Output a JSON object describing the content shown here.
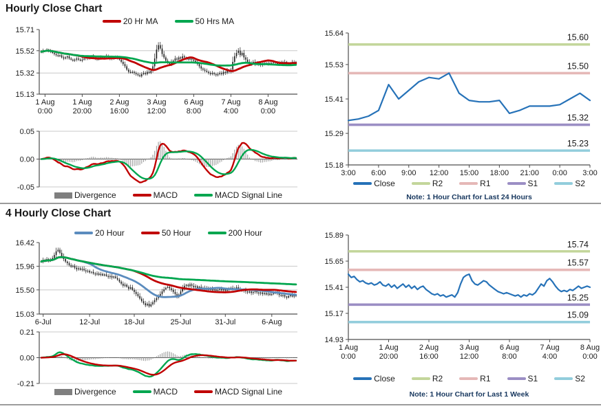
{
  "sections": {
    "hourly": {
      "title": "Hourly Close Chart"
    },
    "four_hourly": {
      "title": "4 Hourly Close Chart"
    }
  },
  "notes": {
    "day": "Note: 1 Hour Chart for Last 24 Hours",
    "week": "Note: 1 Hour Chart for Last 1 Week"
  },
  "colors": {
    "red": "#c00000",
    "green": "#00a64f",
    "blue_ma": "#5b8cbe",
    "close": "#2672b8",
    "candle": "#1b1b1b",
    "divergence_bar": "#9c9c9c",
    "divergence_legend": "#7f7f7f",
    "r2": "#c3d69b",
    "r1": "#e5b8b7",
    "s1": "#9b8ec4",
    "s2": "#92cddc",
    "grid": "#c8c8c8",
    "axis": "#4d4d4d",
    "note_text": "#17375e"
  },
  "legends": {
    "hourly_ma": [
      {
        "label": "20 Hr MA",
        "color": "#c00000"
      },
      {
        "label": "50 Hrs MA",
        "color": "#00a64f"
      }
    ],
    "hourly_macd": [
      {
        "label": "Divergence",
        "color": "#7f7f7f",
        "type": "bar"
      },
      {
        "label": "MACD",
        "color": "#c00000"
      },
      {
        "label": "MACD Signal Line",
        "color": "#00a64f"
      }
    ],
    "fourh_ma": [
      {
        "label": "20 Hour",
        "color": "#5b8cbe"
      },
      {
        "label": "50 Hour",
        "color": "#c00000"
      },
      {
        "label": "200 Hour",
        "color": "#00a64f"
      }
    ],
    "fourh_macd": [
      {
        "label": "Divergence",
        "color": "#7f7f7f",
        "type": "bar"
      },
      {
        "label": "MACD",
        "color": "#00a64f"
      },
      {
        "label": "MACD Signal Line",
        "color": "#c00000"
      }
    ],
    "day_pivot": [
      {
        "label": "Close",
        "color": "#2672b8"
      },
      {
        "label": "R2",
        "color": "#c3d69b"
      },
      {
        "label": "R1",
        "color": "#e5b8b7"
      },
      {
        "label": "S1",
        "color": "#9b8ec4"
      },
      {
        "label": "S2",
        "color": "#92cddc"
      }
    ],
    "week_pivot": [
      {
        "label": "Close",
        "color": "#2672b8"
      },
      {
        "label": "R2",
        "color": "#c3d69b"
      },
      {
        "label": "R1",
        "color": "#e5b8b7"
      },
      {
        "label": "S1",
        "color": "#9b8ec4"
      },
      {
        "label": "S2",
        "color": "#92cddc"
      }
    ]
  },
  "chart_data": {
    "hourly_close": {
      "type": "candlestick",
      "title": "Hourly Close Chart",
      "ylim": [
        15.13,
        15.71
      ],
      "y_ticks": [
        15.71,
        15.52,
        15.32,
        15.13
      ],
      "y_tick_labels": [
        "15.71",
        "15.52",
        "15.32",
        "15.13"
      ],
      "x_tick_indices": [
        2,
        22,
        42,
        62,
        82,
        102,
        122
      ],
      "x_tick_labels": [
        [
          "1 Aug",
          "0:00"
        ],
        [
          "1 Aug",
          "20:00"
        ],
        [
          "2 Aug",
          "16:00"
        ],
        [
          "3 Aug",
          "12:00"
        ],
        [
          "6 Aug",
          "8:00"
        ],
        [
          "7 Aug",
          "4:00"
        ],
        [
          "8 Aug",
          "0:00"
        ]
      ],
      "series": [
        {
          "name": "20 Hr MA",
          "derived": "SMA20 of closes"
        },
        {
          "name": "50 Hrs MA",
          "derived": "SMA50 of closes"
        }
      ],
      "closes": [
        15.51,
        15.52,
        15.52,
        15.53,
        15.52,
        15.51,
        15.5,
        15.49,
        15.48,
        15.47,
        15.48,
        15.46,
        15.45,
        15.46,
        15.47,
        15.45,
        15.44,
        15.43,
        15.44,
        15.45,
        15.44,
        15.43,
        15.44,
        15.45,
        15.46,
        15.45,
        15.46,
        15.47,
        15.46,
        15.45,
        15.44,
        15.45,
        15.46,
        15.45,
        15.46,
        15.47,
        15.46,
        15.45,
        15.46,
        15.45,
        15.46,
        15.45,
        15.44,
        15.42,
        15.4,
        15.38,
        15.35,
        15.33,
        15.32,
        15.33,
        15.32,
        15.31,
        15.3,
        15.29,
        15.31,
        15.32,
        15.31,
        15.33,
        15.32,
        15.34,
        15.38,
        15.45,
        15.53,
        15.57,
        15.54,
        15.49,
        15.46,
        15.43,
        15.41,
        15.4,
        15.42,
        15.43,
        15.45,
        15.44,
        15.46,
        15.45,
        15.47,
        15.46,
        15.45,
        15.44,
        15.45,
        15.44,
        15.43,
        15.42,
        15.4,
        15.38,
        15.36,
        15.35,
        15.34,
        15.33,
        15.32,
        15.31,
        15.32,
        15.31,
        15.3,
        15.31,
        15.32,
        15.31,
        15.33,
        15.32,
        15.34,
        15.33,
        15.35,
        15.42,
        15.47,
        15.5,
        15.52,
        15.48,
        15.5,
        15.46,
        15.44,
        15.42,
        15.4,
        15.41,
        15.42,
        15.4,
        15.41,
        15.4,
        15.39,
        15.4,
        15.41,
        15.4,
        15.41,
        15.4,
        15.41,
        15.42,
        15.41,
        15.4,
        15.41,
        15.42,
        15.41,
        15.42,
        15.41,
        15.4,
        15.41,
        15.42,
        15.42,
        15.41
      ]
    },
    "hourly_macd": {
      "type": "macd",
      "ylim": [
        -0.05,
        0.05
      ],
      "y_ticks": [
        0.05,
        0.0,
        -0.05
      ],
      "y_tick_labels": [
        "0.05",
        "0.00",
        "-0.05"
      ],
      "derived": "MACD(12,26,9) of hourly closes; Divergence = MACD - Signal",
      "macd_color": "#c00000",
      "signal_color": "#00a64f"
    },
    "day_close": {
      "type": "line",
      "note": "Note: 1 Hour Chart for Last 24 Hours",
      "ylim": [
        15.18,
        15.64
      ],
      "y_ticks": [
        15.64,
        15.53,
        15.41,
        15.29,
        15.18
      ],
      "y_tick_labels": [
        "15.64",
        "15.53",
        "15.41",
        "15.29",
        "15.18"
      ],
      "x_tick_indices": [
        0,
        3,
        6,
        9,
        12,
        15,
        18,
        21,
        24
      ],
      "x_tick_labels": [
        "3:00",
        "6:00",
        "9:00",
        "12:00",
        "15:00",
        "18:00",
        "21:00",
        "0:00",
        "3:00"
      ],
      "levels": [
        {
          "name": "R2",
          "value": 15.6,
          "label": "15.60",
          "color": "#c3d69b"
        },
        {
          "name": "R1",
          "value": 15.5,
          "label": "15.50",
          "color": "#e5b8b7"
        },
        {
          "name": "S1",
          "value": 15.32,
          "label": "15.32",
          "color": "#9b8ec4"
        },
        {
          "name": "S2",
          "value": 15.23,
          "label": "15.23",
          "color": "#92cddc"
        }
      ],
      "closes": [
        15.335,
        15.34,
        15.35,
        15.37,
        15.46,
        15.41,
        15.44,
        15.47,
        15.485,
        15.48,
        15.5,
        15.43,
        15.405,
        15.4,
        15.4,
        15.405,
        15.36,
        15.37,
        15.385,
        15.385,
        15.385,
        15.39,
        15.41,
        15.43,
        15.405
      ]
    },
    "fourh_close": {
      "type": "candlestick",
      "title": "4 Hourly Close Chart",
      "ylim": [
        15.03,
        16.42
      ],
      "y_ticks": [
        16.42,
        15.96,
        15.5,
        15.03
      ],
      "y_tick_labels": [
        "16.42",
        "15.96",
        "15.50",
        "15.03"
      ],
      "x_tick_indices": [
        1,
        26,
        50,
        75,
        99,
        124
      ],
      "x_tick_labels": [
        [
          "6-Jul"
        ],
        [
          "12-Jul"
        ],
        [
          "18-Jul"
        ],
        [
          "25-Jul"
        ],
        [
          "31-Jul"
        ],
        [
          "6-Aug"
        ]
      ],
      "series": [
        {
          "name": "20 Hour",
          "derived": "SMA20 of closes"
        },
        {
          "name": "50 Hour",
          "derived": "SMA50 of closes"
        },
        {
          "name": "200 Hour",
          "derived": "SMA200 of closes"
        }
      ],
      "closes": [
        16.05,
        16.08,
        16.06,
        16.1,
        16.07,
        16.09,
        16.12,
        16.18,
        16.25,
        16.28,
        16.22,
        16.15,
        16.1,
        16.05,
        16.02,
        15.98,
        15.95,
        15.97,
        15.93,
        15.9,
        15.92,
        15.89,
        15.91,
        15.88,
        15.86,
        15.87,
        15.84,
        15.85,
        15.82,
        15.8,
        15.82,
        15.79,
        15.81,
        15.78,
        15.8,
        15.77,
        15.75,
        15.77,
        15.74,
        15.76,
        15.73,
        15.7,
        15.66,
        15.62,
        15.58,
        15.6,
        15.56,
        15.52,
        15.55,
        15.5,
        15.46,
        15.42,
        15.38,
        15.33,
        15.28,
        15.24,
        15.2,
        15.23,
        15.18,
        15.22,
        15.26,
        15.3,
        15.34,
        15.38,
        15.42,
        15.47,
        15.51,
        15.54,
        15.56,
        15.53,
        15.5,
        15.46,
        15.42,
        15.38,
        15.41,
        15.47,
        15.53,
        15.58,
        15.6,
        15.57,
        15.61,
        15.58,
        15.55,
        15.57,
        15.54,
        15.56,
        15.52,
        15.54,
        15.51,
        15.53,
        15.5,
        15.52,
        15.49,
        15.51,
        15.48,
        15.5,
        15.52,
        15.49,
        15.51,
        15.48,
        15.5,
        15.52,
        15.54,
        15.51,
        15.53,
        15.55,
        15.52,
        15.5,
        15.48,
        15.5,
        15.47,
        15.45,
        15.47,
        15.44,
        15.46,
        15.48,
        15.45,
        15.43,
        15.45,
        15.42,
        15.44,
        15.41,
        15.43,
        15.4,
        15.42,
        15.44,
        15.46,
        15.43,
        15.4,
        15.38,
        15.4,
        15.37,
        15.35,
        15.38,
        15.4,
        15.37,
        15.39,
        15.38
      ]
    },
    "fourh_macd": {
      "type": "macd",
      "ylim": [
        -0.21,
        0.21
      ],
      "y_ticks": [
        0.21,
        0.0,
        -0.21
      ],
      "y_tick_labels": [
        "0.21",
        "0.00",
        "-0.21"
      ],
      "derived": "MACD(12,26,9) of 4-hourly closes; Divergence = MACD - Signal",
      "macd_color": "#00a64f",
      "signal_color": "#c00000"
    },
    "week_close": {
      "type": "line",
      "note": "Note: 1 Hour Chart for Last 1 Week",
      "ylim": [
        14.93,
        15.89
      ],
      "y_ticks": [
        15.89,
        15.65,
        15.41,
        15.17,
        14.93
      ],
      "y_tick_labels": [
        "15.89",
        "15.65",
        "15.41",
        "15.17",
        "14.93"
      ],
      "x_tick_indices": [
        0,
        14,
        28,
        42,
        56,
        70,
        84
      ],
      "x_tick_labels": [
        [
          "1 Aug",
          "0:00"
        ],
        [
          "1 Aug",
          "20:00"
        ],
        [
          "2 Aug",
          "16:00"
        ],
        [
          "3 Aug",
          "12:00"
        ],
        [
          "6 Aug",
          "8:00"
        ],
        [
          "7 Aug",
          "4:00"
        ],
        [
          "8 Aug",
          "0:00"
        ]
      ],
      "levels": [
        {
          "name": "R2",
          "value": 15.74,
          "label": "15.74",
          "color": "#c3d69b"
        },
        {
          "name": "R1",
          "value": 15.57,
          "label": "15.57",
          "color": "#e5b8b7"
        },
        {
          "name": "S1",
          "value": 15.25,
          "label": "15.25",
          "color": "#9b8ec4"
        },
        {
          "name": "S2",
          "value": 15.09,
          "label": "15.09",
          "color": "#92cddc"
        }
      ],
      "closes": [
        15.53,
        15.5,
        15.51,
        15.48,
        15.46,
        15.47,
        15.45,
        15.44,
        15.45,
        15.43,
        15.44,
        15.46,
        15.43,
        15.42,
        15.44,
        15.41,
        15.43,
        15.4,
        15.42,
        15.44,
        15.41,
        15.43,
        15.4,
        15.42,
        15.39,
        15.41,
        15.42,
        15.39,
        15.37,
        15.35,
        15.34,
        15.35,
        15.33,
        15.34,
        15.32,
        15.33,
        15.34,
        15.32,
        15.36,
        15.44,
        15.5,
        15.52,
        15.53,
        15.47,
        15.44,
        15.43,
        15.45,
        15.47,
        15.46,
        15.43,
        15.41,
        15.39,
        15.37,
        15.36,
        15.35,
        15.36,
        15.35,
        15.34,
        15.33,
        15.34,
        15.32,
        15.34,
        15.33,
        15.35,
        15.34,
        15.36,
        15.4,
        15.44,
        15.42,
        15.47,
        15.49,
        15.46,
        15.42,
        15.39,
        15.37,
        15.38,
        15.37,
        15.39,
        15.38,
        15.4,
        15.42,
        15.4,
        15.41,
        15.42,
        15.41
      ]
    }
  }
}
